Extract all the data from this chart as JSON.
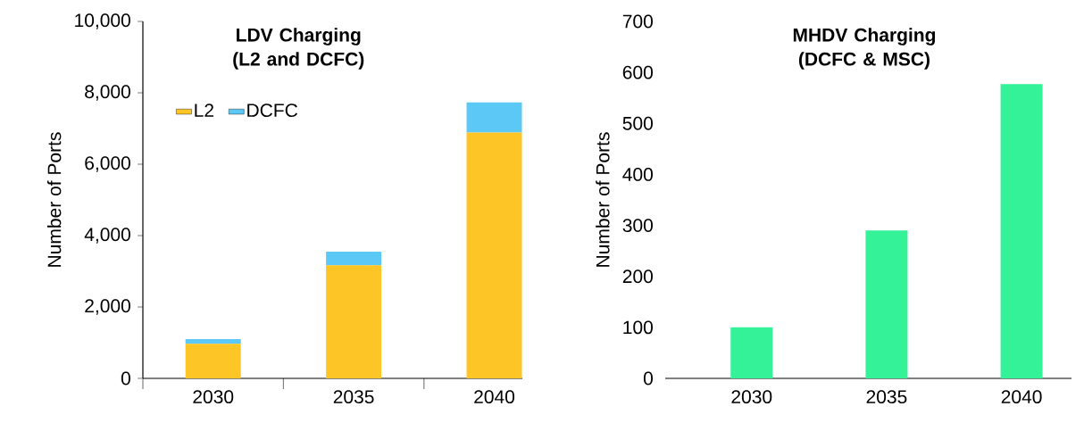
{
  "chart_data": [
    {
      "type": "bar",
      "title": "LDV Charging (L2 and DCFC)",
      "ylabel": "Number of Ports",
      "categories": [
        "2030",
        "2035",
        "2040"
      ],
      "stacked": true,
      "series": [
        {
          "name": "L2",
          "color": "#fdc526",
          "values": [
            970,
            3170,
            6890
          ]
        },
        {
          "name": "DCFC",
          "color": "#5bc8f5",
          "values": [
            130,
            380,
            840
          ]
        }
      ],
      "ylim": [
        0,
        10000
      ],
      "yticks": [
        0,
        {
          "value": 2000,
          "label": "2,000"
        },
        {
          "value": 4000,
          "label": "4,000"
        },
        {
          "value": 6000,
          "label": "6,000"
        },
        {
          "value": 8000,
          "label": "8,000"
        },
        {
          "value": 10000,
          "label": "10,000"
        }
      ],
      "legend": "top left",
      "grid": false
    },
    {
      "type": "bar",
      "title": "MHDV Charging (DCFC & MSC)",
      "ylabel": "Number of Ports",
      "categories": [
        "2030",
        "2035",
        "2040"
      ],
      "series": [
        {
          "color": "#33f297",
          "values": [
            100,
            290,
            577
          ]
        }
      ],
      "ylim": [
        0,
        700
      ],
      "yticks": [
        0,
        100,
        200,
        300,
        400,
        500,
        600,
        700
      ],
      "grid": false
    }
  ]
}
